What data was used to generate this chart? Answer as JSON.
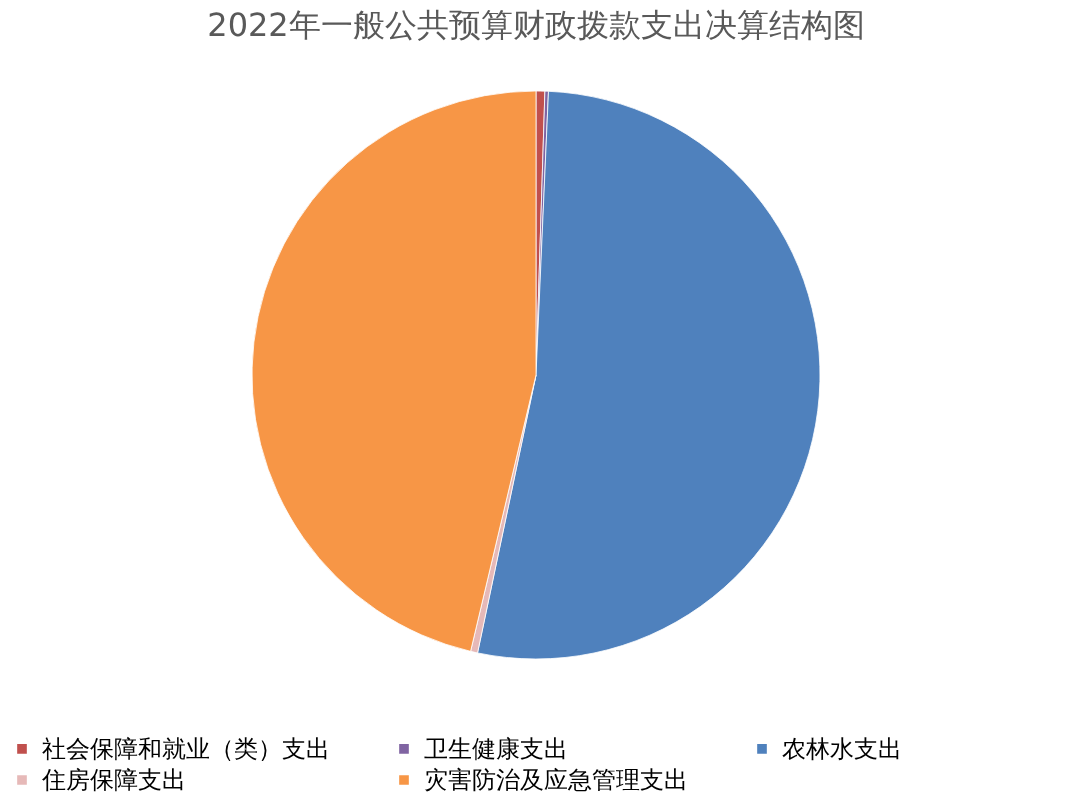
{
  "chart_data": {
    "type": "pie",
    "title": "2022年一般公共预算财政拨款支出决算结构图",
    "categories": [
      "社会保障和就业（类）支出",
      "卫生健康支出",
      "农林水支出",
      "住房保障支出",
      "灾害防治及应急管理支出"
    ],
    "values": [
      0.5,
      0.2,
      52.6,
      0.4,
      46.3
    ],
    "colors": [
      "#c0504d",
      "#8064a2",
      "#4f81bd",
      "#e6b9b8",
      "#f79646"
    ],
    "legend": "bottom"
  }
}
